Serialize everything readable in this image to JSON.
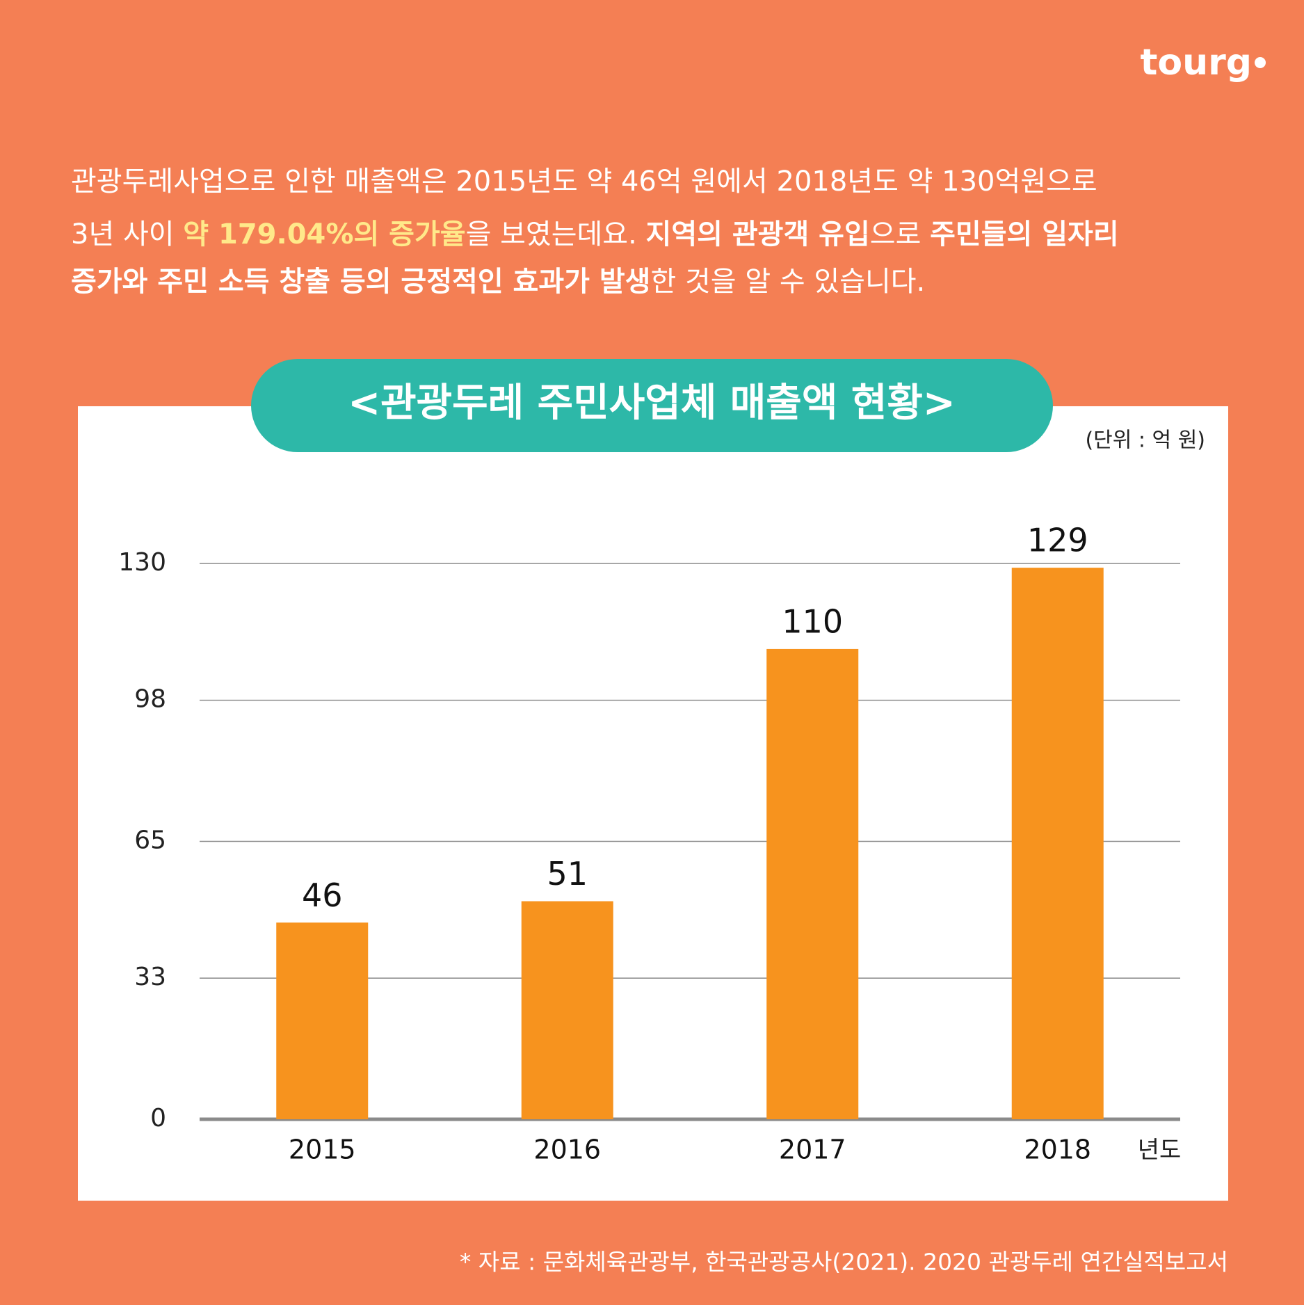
{
  "logo": "tourg",
  "intro": {
    "lines": [
      [
        {
          "text": "관광두레사업으로 인한 매출액은 2015년도 약 46억 원에서 2018년도 약 130억원으로",
          "style": "normal"
        }
      ],
      [
        {
          "text": "3년 사이 ",
          "style": "normal"
        },
        {
          "text": "약 179.04%의 증가율",
          "style": "highlight"
        },
        {
          "text": "을 보였는데요. ",
          "style": "normal"
        },
        {
          "text": "지역의 관광객 유입",
          "style": "bold"
        },
        {
          "text": "으로 ",
          "style": "normal"
        },
        {
          "text": "주민들의 일자리",
          "style": "bold"
        }
      ],
      [
        {
          "text": "증가와 주민 소득 창출 등의 긍정적인 효과가 발생",
          "style": "bold"
        },
        {
          "text": "한 것을 알 수 있습니다.",
          "style": "normal"
        }
      ]
    ]
  },
  "chart_data": {
    "type": "bar",
    "title": "<관광두레 주민사업체 매출액 현황>",
    "unit": "(단위 : 억 원)",
    "x_label": "년도",
    "categories": [
      "2015",
      "2016",
      "2017",
      "2018"
    ],
    "values": [
      46,
      51,
      110,
      129
    ],
    "color": "#f7931e",
    "ylim": [
      0,
      130
    ],
    "yticks": [
      0,
      33,
      65,
      98,
      130
    ],
    "grid": true
  },
  "source": "* 자료 : 문화체육관광부, 한국관광공사(2021). 2020 관광두레 연간실적보고서"
}
